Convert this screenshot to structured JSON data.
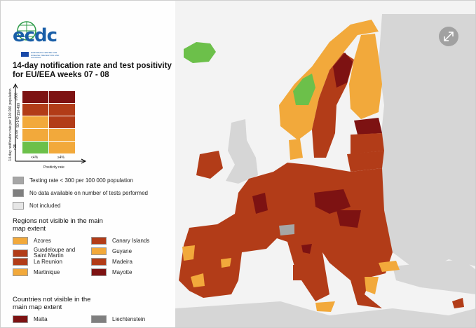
{
  "header": {
    "logo": "ecdc",
    "logo_subtitle": "EUROPEAN CENTRE FOR DISEASE PREVENTION AND CONTROL",
    "title": "14-day notification rate and test positivity for EU/EEA weeks 07 - 08"
  },
  "matrix": {
    "y_label": "14-day notification rate per 100 000 population",
    "rows": [
      "≥500",
      "150-499",
      "50-149",
      "25-49",
      "<25"
    ],
    "columns": [
      "<4%",
      "≥4%"
    ],
    "x_label": "Positivity rate",
    "cells": [
      [
        "#7d1212",
        "#7d1212"
      ],
      [
        "#b23c18",
        "#b23c18"
      ],
      [
        "#f2a93b",
        "#b23c18"
      ],
      [
        "#f2a93b",
        "#f2a93b"
      ],
      [
        "#6cc04a",
        "#f2a93b"
      ]
    ]
  },
  "legend": [
    {
      "label": "Testing rate < 300 per 100 000 population",
      "color": "#a6a6a6"
    },
    {
      "label": "No data available on number of tests performed",
      "color": "#7f7f7f"
    },
    {
      "label": "Not included",
      "color": "#e6e6e6"
    }
  ],
  "regions": {
    "heading": "Regions not visible in the main map extent",
    "items": [
      {
        "label": "Azores",
        "color": "#f2a93b"
      },
      {
        "label": "Canary Islands",
        "color": "#b23c18"
      },
      {
        "label": "Guadeloupe and Saint Martin",
        "color": "#b23c18"
      },
      {
        "label": "Guyane",
        "color": "#f2a93b"
      },
      {
        "label": "La Reunion",
        "color": "#b23c18"
      },
      {
        "label": "Madeira",
        "color": "#b23c18"
      },
      {
        "label": "Martinique",
        "color": "#f2a93b"
      },
      {
        "label": "Mayotte",
        "color": "#7d1212"
      }
    ]
  },
  "countries": {
    "heading": "Countries not visible in the main map extent",
    "items": [
      {
        "label": "Malta",
        "color": "#7d1212"
      },
      {
        "label": "Liechtenstein",
        "color": "#7f7f7f"
      }
    ]
  }
}
